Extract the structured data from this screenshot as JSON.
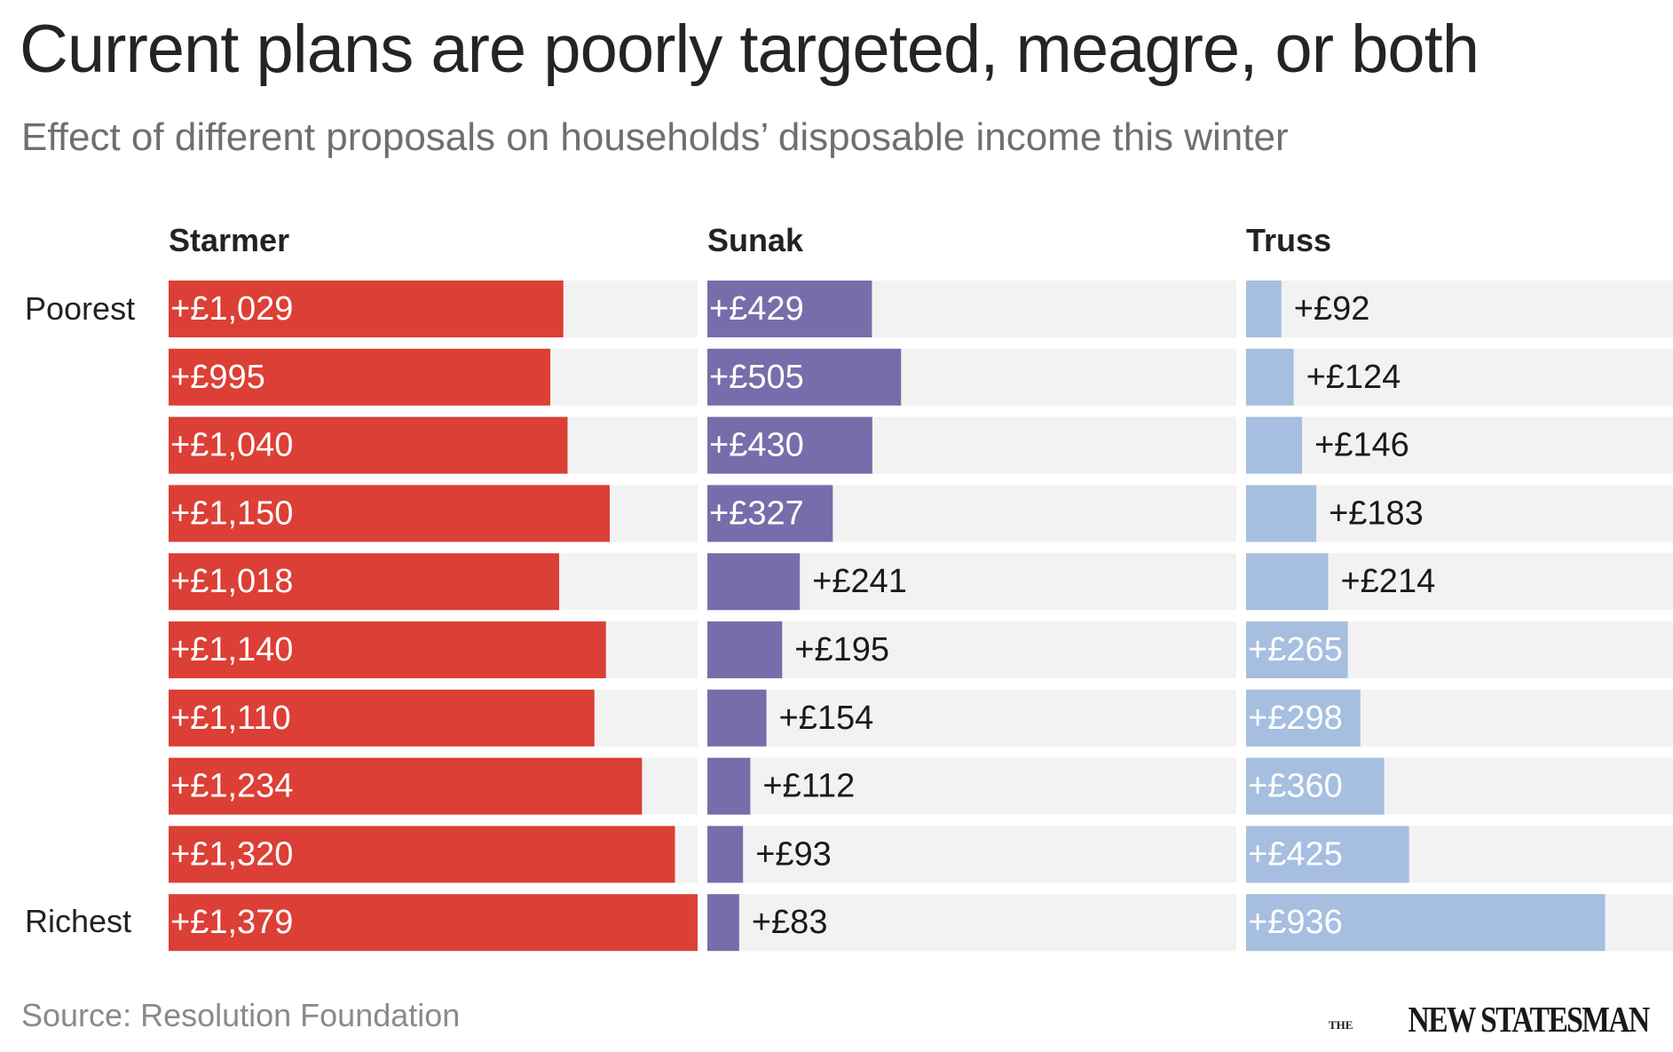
{
  "title": "Current plans are poorly targeted, meagre, or both",
  "subtitle": "Effect of different proposals on households’ disposable income this winter",
  "source": "Source: Resolution Foundation",
  "logo": {
    "small": "THE",
    "main": "NEW STATESMAN"
  },
  "row_labels": {
    "top": "Poorest",
    "bottom": "Richest"
  },
  "colors": {
    "track": "#f2f2f2",
    "starmer": "#dc3f35",
    "sunak": "#776daa",
    "truss": "#a6bfe0",
    "label_on_bar": "#ffffff",
    "label_off_bar": "#1a1a1a"
  },
  "chart_data": {
    "type": "bar",
    "orientation": "horizontal",
    "categories": [
      "Poorest",
      "",
      "",
      "",
      "",
      "",
      "",
      "",
      "",
      "Richest"
    ],
    "xlim": [
      0,
      1379
    ],
    "series": [
      {
        "name": "Starmer",
        "color": "#dc3f35",
        "values": [
          1029,
          995,
          1040,
          1150,
          1018,
          1140,
          1110,
          1234,
          1320,
          1379
        ],
        "labels": [
          "+£1,029",
          "+£995",
          "+£1,040",
          "+£1,150",
          "+£1,018",
          "+£1,140",
          "+£1,110",
          "+£1,234",
          "+£1,320",
          "+£1,379"
        ]
      },
      {
        "name": "Sunak",
        "color": "#776daa",
        "values": [
          429,
          505,
          430,
          327,
          241,
          195,
          154,
          112,
          93,
          83
        ],
        "labels": [
          "+£429",
          "+£505",
          "+£430",
          "+£327",
          "+£241",
          "+£195",
          "+£154",
          "+£112",
          "+£93",
          "+£83"
        ]
      },
      {
        "name": "Truss",
        "color": "#a6bfe0",
        "values": [
          92,
          124,
          146,
          183,
          214,
          265,
          298,
          360,
          425,
          936
        ],
        "labels": [
          "+£92",
          "+£124",
          "+£146",
          "+£183",
          "+£214",
          "+£265",
          "+£298",
          "+£360",
          "+£425",
          "+£936"
        ]
      }
    ]
  }
}
